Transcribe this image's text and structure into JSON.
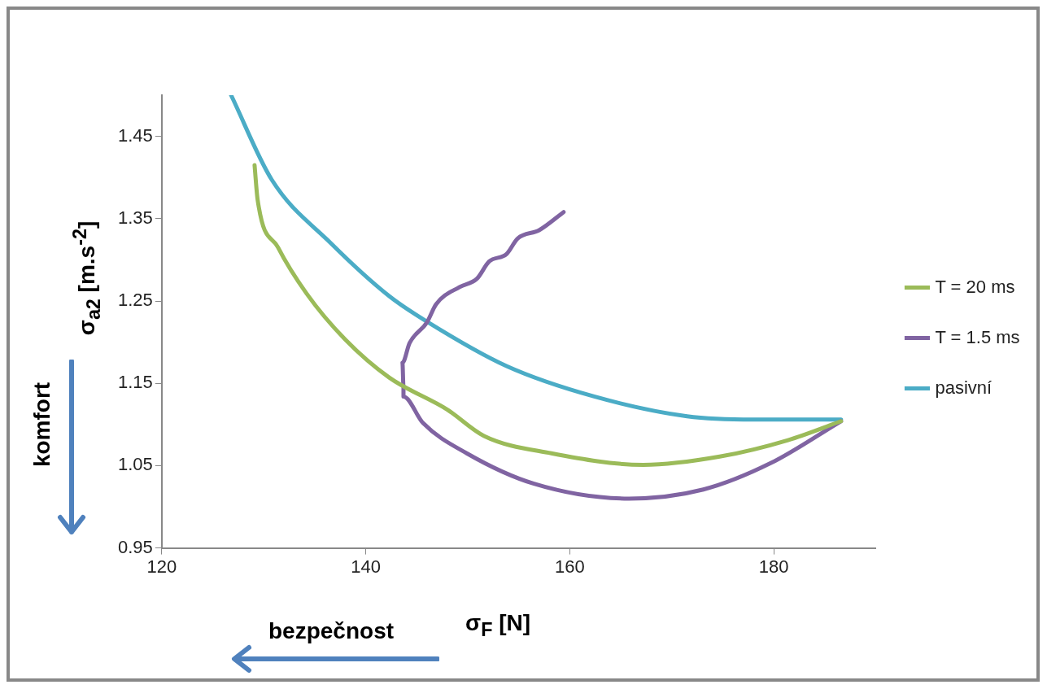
{
  "chart_data": {
    "type": "line",
    "xlabel": "σ$_{F}$ [N]",
    "ylabel": "σ$_{a2}$ [m.s$^{-2}$]",
    "annotations": [
      "bezpečnost",
      "komfort"
    ],
    "xlim": [
      120,
      190
    ],
    "xticks": [
      120,
      140,
      160,
      180
    ],
    "ylim": [
      0.95,
      1.5
    ],
    "yticks": [
      0.95,
      1.05,
      1.15,
      1.25,
      1.35,
      1.45
    ],
    "legend": "right",
    "marker": "none",
    "line_style": "solid",
    "series": [
      {
        "name": "T = 20 ms",
        "color": "#9bbb59",
        "x": [
          129.1,
          129.4,
          131.4,
          134.2,
          138.0,
          142.3,
          148.0,
          151.6,
          158.2,
          167.2,
          174.7,
          181.4,
          186.6
        ],
        "values": [
          1.415,
          1.373,
          1.315,
          1.259,
          1.203,
          1.157,
          1.118,
          1.086,
          1.065,
          1.051,
          1.061,
          1.081,
          1.104
        ]
      },
      {
        "name": "T = 1.5 ms",
        "color": "#8064a2",
        "x": [
          159.4,
          157.0,
          154.9,
          153.8,
          152.1,
          150.9,
          149.2,
          146.9,
          146.0,
          144.3,
          143.6,
          143.7,
          143.7,
          145.6,
          149.9,
          156.5,
          165.8,
          173.1,
          179.7,
          186.6
        ],
        "values": [
          1.358,
          1.336,
          1.326,
          1.307,
          1.298,
          1.277,
          1.267,
          1.246,
          1.224,
          1.199,
          1.175,
          1.146,
          1.134,
          1.102,
          1.065,
          1.028,
          1.01,
          1.021,
          1.053,
          1.104
        ]
      },
      {
        "name": "pasivní",
        "color": "#4bacc6",
        "x": [
          126.8,
          130.8,
          136.6,
          142.3,
          146.0,
          153.8,
          162.4,
          171.5,
          178.0,
          186.6
        ],
        "values": [
          1.5,
          1.397,
          1.32,
          1.256,
          1.225,
          1.171,
          1.134,
          1.11,
          1.106,
          1.106
        ]
      }
    ]
  }
}
